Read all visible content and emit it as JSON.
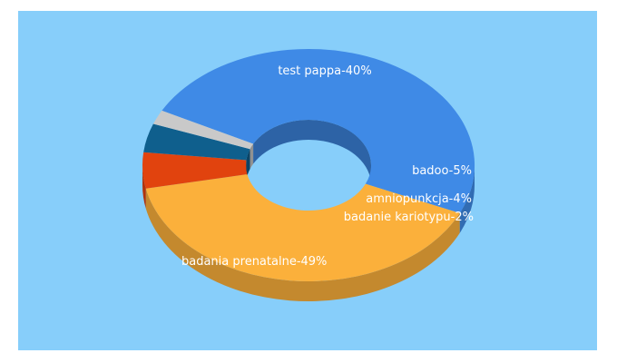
{
  "chart_data": {
    "type": "pie",
    "variant": "3d-donut",
    "title": "",
    "slices": [
      {
        "label": "badania prenatalne-49%",
        "value": 49,
        "color": "#3f8ae6"
      },
      {
        "label": "test pappa-40%",
        "value": 40,
        "color": "#fbb03b"
      },
      {
        "label": "badoo-5%",
        "value": 5,
        "color": "#e1430e"
      },
      {
        "label": "amniopunkcja-4%",
        "value": 4,
        "color": "#0f5f8d"
      },
      {
        "label": "badanie kariotypu-2%",
        "value": 2,
        "color": "#c9c9c9"
      }
    ],
    "background": "#87cefa"
  }
}
